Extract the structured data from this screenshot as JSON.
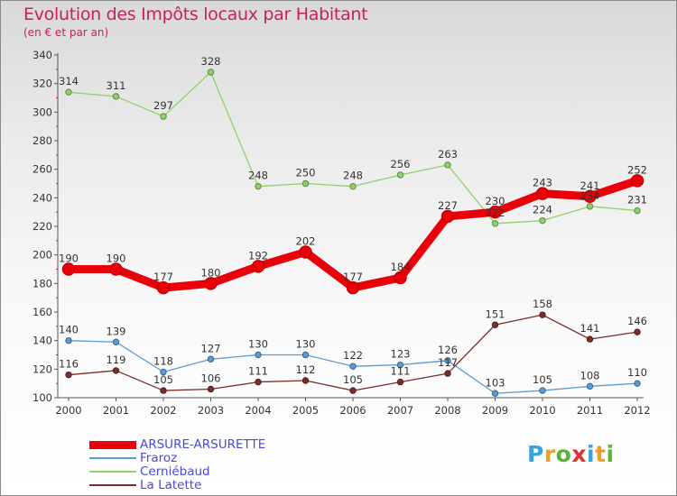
{
  "header": {
    "title": "Evolution des Impôts locaux par Habitant",
    "subtitle": "(en € et par an)"
  },
  "logo": {
    "text": "Proxiti",
    "letter_colors": [
      "#3aa3dd",
      "#f0a020",
      "#59b533",
      "#e03030",
      "#3aa3dd",
      "#f0a020",
      "#59b533"
    ]
  },
  "chart_data": {
    "type": "line",
    "x": [
      "2000",
      "2001",
      "2002",
      "2003",
      "2004",
      "2005",
      "2006",
      "2007",
      "2008",
      "2009",
      "2010",
      "2011",
      "2012"
    ],
    "ylim": [
      100,
      340
    ],
    "yticks": [
      100,
      120,
      140,
      160,
      180,
      200,
      220,
      240,
      260,
      280,
      300,
      320,
      340
    ],
    "grid": false,
    "legend_position": "bottom-left",
    "series": [
      {
        "name": "ARSURE-ARSURETTE",
        "color": "#e8000b",
        "values": [
          190,
          190,
          177,
          180,
          192,
          202,
          177,
          184,
          227,
          230,
          243,
          241,
          252
        ]
      },
      {
        "name": "Fraroz",
        "color": "#5b9bd5",
        "values": [
          140,
          139,
          118,
          127,
          130,
          130,
          122,
          123,
          126,
          103,
          105,
          108,
          110
        ]
      },
      {
        "name": "Cerniébaud",
        "color": "#8fd16a",
        "values": [
          314,
          311,
          297,
          328,
          248,
          250,
          248,
          256,
          263,
          222,
          224,
          234,
          231
        ]
      },
      {
        "name": "La Latette",
        "color": "#7b2c2c",
        "values": [
          116,
          119,
          105,
          106,
          111,
          112,
          105,
          111,
          117,
          151,
          158,
          141,
          146
        ]
      }
    ]
  }
}
